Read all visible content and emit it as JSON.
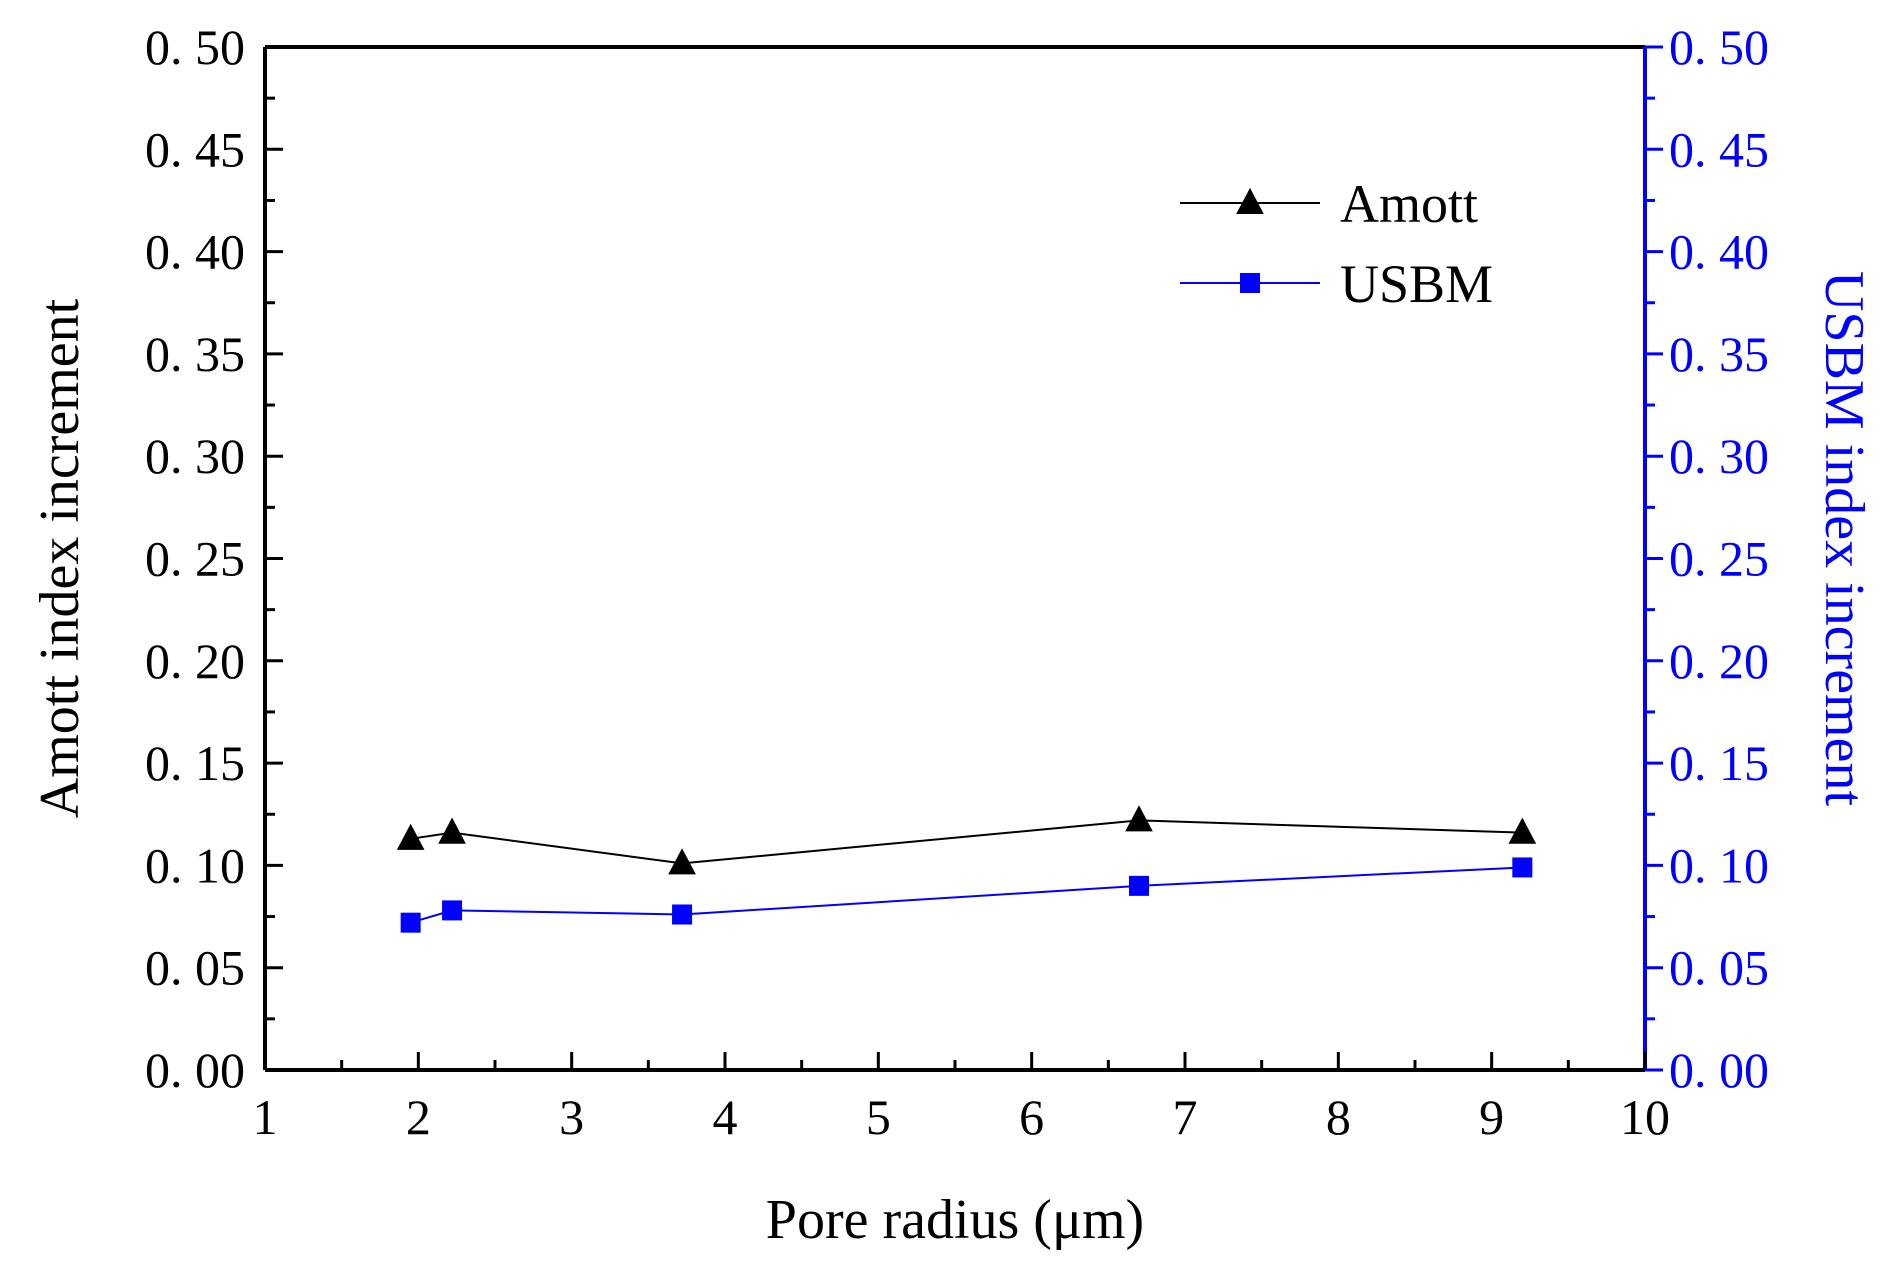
{
  "chart_data": {
    "type": "line",
    "x_label": "Pore radius (μm)",
    "y_left_label": "Amott index increment",
    "y_right_label": "USBM index increment",
    "xlim": [
      1,
      10
    ],
    "ylim_left": [
      0.0,
      0.5
    ],
    "ylim_right": [
      0.0,
      0.5
    ],
    "x_ticks": [
      {
        "value": 1,
        "label": "1"
      },
      {
        "value": 2,
        "label": "2"
      },
      {
        "value": 3,
        "label": "3"
      },
      {
        "value": 4,
        "label": "4"
      },
      {
        "value": 5,
        "label": "5"
      },
      {
        "value": 6,
        "label": "6"
      },
      {
        "value": 7,
        "label": "7"
      },
      {
        "value": 8,
        "label": "8"
      },
      {
        "value": 9,
        "label": "9"
      },
      {
        "value": 10,
        "label": "10"
      }
    ],
    "y_left_ticks": [
      {
        "value": 0.0,
        "label": "0. 00"
      },
      {
        "value": 0.05,
        "label": "0. 05"
      },
      {
        "value": 0.1,
        "label": "0. 10"
      },
      {
        "value": 0.15,
        "label": "0. 15"
      },
      {
        "value": 0.2,
        "label": "0. 20"
      },
      {
        "value": 0.25,
        "label": "0. 25"
      },
      {
        "value": 0.3,
        "label": "0. 30"
      },
      {
        "value": 0.35,
        "label": "0. 35"
      },
      {
        "value": 0.4,
        "label": "0. 40"
      },
      {
        "value": 0.45,
        "label": "0. 45"
      },
      {
        "value": 0.5,
        "label": "0. 50"
      }
    ],
    "y_right_ticks": [
      {
        "value": 0.0,
        "label": "0. 00"
      },
      {
        "value": 0.05,
        "label": "0. 05"
      },
      {
        "value": 0.1,
        "label": "0. 10"
      },
      {
        "value": 0.15,
        "label": "0. 15"
      },
      {
        "value": 0.2,
        "label": "0. 20"
      },
      {
        "value": 0.25,
        "label": "0. 25"
      },
      {
        "value": 0.3,
        "label": "0. 30"
      },
      {
        "value": 0.35,
        "label": "0. 35"
      },
      {
        "value": 0.4,
        "label": "0. 40"
      },
      {
        "value": 0.45,
        "label": "0. 45"
      },
      {
        "value": 0.5,
        "label": "0. 50"
      }
    ],
    "legend_position": "top-right",
    "grid": false,
    "series": [
      {
        "name": "Amott",
        "axis": "left",
        "color": "#000000",
        "marker": "triangle",
        "x": [
          1.95,
          2.22,
          3.72,
          6.7,
          9.2
        ],
        "y": [
          0.113,
          0.116,
          0.101,
          0.122,
          0.116
        ]
      },
      {
        "name": "USBM",
        "axis": "right",
        "color": "#0000ff",
        "marker": "square",
        "x": [
          1.95,
          2.22,
          3.72,
          6.7,
          9.2
        ],
        "y": [
          0.072,
          0.078,
          0.076,
          0.09,
          0.099
        ]
      }
    ]
  }
}
